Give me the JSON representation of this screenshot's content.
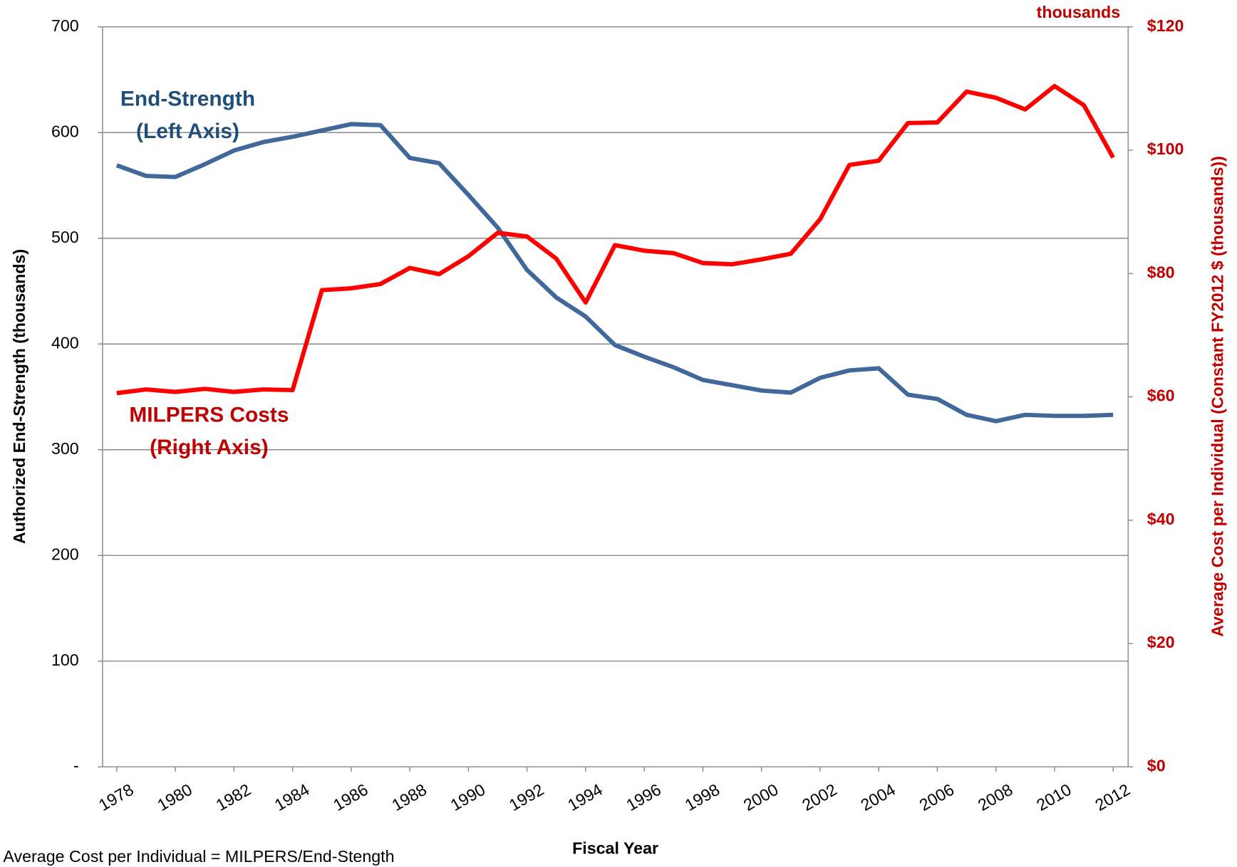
{
  "chart_data": {
    "type": "line",
    "x_label": "Fiscal Year",
    "y_label": "Authorized End-Strength (thousands)",
    "y2_label": "Average Cost per Individual (Constant FY2012 $ (thousands))",
    "y2_unit": "thousands",
    "footnote": "Average Cost per Individual = MILPERS/End-Stength",
    "categories": [
      "1978",
      null,
      "1980",
      null,
      "1982",
      null,
      "1984",
      null,
      "1986",
      null,
      "1988",
      null,
      "1990",
      null,
      "1992",
      null,
      "1994",
      null,
      "1996",
      null,
      "1998",
      null,
      "2000",
      null,
      "2002",
      null,
      "2004",
      null,
      "2006",
      null,
      "2008",
      null,
      "2010",
      null,
      "2012"
    ],
    "series": [
      {
        "name": "End-Strength",
        "color": "#41689a",
        "axis": "y",
        "values": [
          569,
          559,
          558,
          570,
          583,
          591,
          596,
          602,
          608,
          607,
          576,
          571,
          541,
          510,
          470,
          444,
          426,
          399,
          388,
          378,
          366,
          361,
          356,
          354,
          368,
          375,
          377,
          352,
          348,
          333,
          327,
          333,
          332,
          332,
          333
        ]
      },
      {
        "name": "MILPERS Costs",
        "color": "#ff0000",
        "axis": "y2",
        "values": [
          60.6,
          61.2,
          60.8,
          61.3,
          60.8,
          61.2,
          61.1,
          77.3,
          77.6,
          78.3,
          80.9,
          79.9,
          82.8,
          86.6,
          86.0,
          82.4,
          75.3,
          84.6,
          83.7,
          83.3,
          81.7,
          81.5,
          82.3,
          83.2,
          88.8,
          97.6,
          98.3,
          104.4,
          104.5,
          109.5,
          108.5,
          106.6,
          110.4,
          107.3,
          98.8
        ]
      }
    ],
    "annotations": [
      {
        "lines": [
          "End-Strength",
          "(Left Axis)"
        ],
        "color": "#1f4e79"
      },
      {
        "lines": [
          "MILPERS Costs",
          "(Right Axis)"
        ],
        "color": "#c00000"
      }
    ],
    "ylim": [
      0,
      700
    ],
    "yticks": [
      {
        "value": 0,
        "label": "-"
      },
      100,
      200,
      300,
      400,
      500,
      600,
      700
    ],
    "y2lim": [
      0,
      120
    ],
    "y2ticks": [
      {
        "value": 0,
        "label": "$0"
      },
      {
        "value": 20,
        "label": "$20"
      },
      {
        "value": 40,
        "label": "$40"
      },
      {
        "value": 60,
        "label": "$60"
      },
      {
        "value": 80,
        "label": "$80"
      },
      {
        "value": 100,
        "label": "$100"
      },
      {
        "value": 120,
        "label": "$120"
      }
    ],
    "y2_color": "#c00000",
    "grid": true
  }
}
